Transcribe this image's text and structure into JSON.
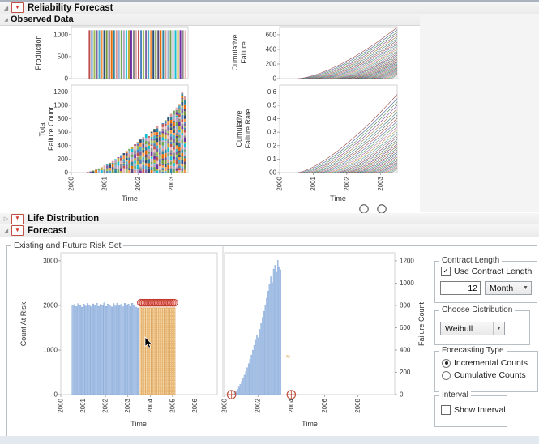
{
  "header": {
    "title": "Reliability Forecast"
  },
  "sections": {
    "observed_data": "Observed Data",
    "life_distribution": "Life Distribution",
    "forecast": "Forecast",
    "risk_set_title": "Existing and Future Risk Set"
  },
  "controls": {
    "contract_length": {
      "title": "Contract Length",
      "checkbox_label": "Use Contract Length",
      "checkbox_checked": true,
      "value": "12",
      "unit": "Month"
    },
    "choose_distribution": {
      "title": "Choose Distribution",
      "selected": "Weibull"
    },
    "forecasting_type": {
      "title": "Forecasting Type",
      "options": [
        "Incremental Counts",
        "Cumulative Counts"
      ],
      "selected": "Incremental Counts"
    },
    "interval": {
      "title": "Interval",
      "checkbox_label": "Show Interval",
      "checkbox_checked": false
    }
  },
  "chart_data": {
    "palettes": {
      "bars": [
        "#c0504d",
        "#4f81bd",
        "#9bbb59",
        "#8064a2",
        "#4bacc6",
        "#f79646",
        "#2c4d75",
        "#77933c",
        "#5f497a",
        "#e36c0a",
        "#31859c",
        "#d99694",
        "#95b3d7",
        "#71a659",
        "#b3a2c7",
        "#17becf",
        "#c3a932",
        "#7030a0",
        "#8c8c8c",
        "#e6b9b8"
      ],
      "lines": [
        "#8c3333",
        "#33518c",
        "#2f7a3d",
        "#7a3c8c",
        "#8c6a2f",
        "#2f7a7a",
        "#555555",
        "#a04545",
        "#45609f",
        "#4f8f4f",
        "#9f5fae",
        "#b08030",
        "#3f8f8f",
        "#777777",
        "#7a2e4d",
        "#2e5d7a",
        "#6b7a2e",
        "#5d2e7a",
        "#8a4a2e",
        "#2e7a5d"
      ],
      "observed_bar": "#a9c3e8",
      "observed_bar_edge": "#7aa0d2",
      "future_bar": "#f6d7a4",
      "future_bar_dot": "#dfa050",
      "risk_marker": "#c0392b",
      "anchor_marker": "#bf5240",
      "tilde_color": "#d69a3f"
    },
    "production": {
      "type": "bar",
      "ylabel": "Production",
      "yticks": [
        0,
        500,
        1000
      ],
      "ylim": [
        0,
        1180
      ],
      "x_range": [
        2000,
        2003.5
      ],
      "bar_count": 40,
      "bar_value": 1100,
      "x_start": 2000.52,
      "x_step": 0.0737
    },
    "cumulative_failure": {
      "type": "line",
      "ylabel": "Cumulative Failure",
      "ylabel_lines": [
        "Cumulative",
        "Failure"
      ],
      "yticks": [
        0,
        200,
        400,
        600
      ],
      "ylim": [
        0,
        710
      ],
      "x_range": [
        2000,
        2003.5
      ],
      "x_end": 2003.5,
      "curve_exponent": 1.5,
      "series_start_first": 2000.55,
      "series_start_step": 0.0833,
      "series_finals": [
        700,
        668,
        637,
        607,
        578,
        550,
        523,
        497,
        472,
        448,
        425,
        403,
        381,
        360,
        340,
        320,
        301,
        283,
        265,
        248,
        232,
        216,
        200,
        185,
        170,
        156,
        142,
        129,
        116,
        104,
        92,
        80,
        68,
        56
      ]
    },
    "total_failure_count": {
      "type": "stacked_bar",
      "ylabel_lines": [
        "Total",
        "Failure Count"
      ],
      "xlabel": "Time",
      "yticks": [
        0,
        200,
        400,
        600,
        800,
        1000,
        1200
      ],
      "ylim": [
        0,
        1300
      ],
      "xticks": [
        2000,
        2001,
        2002,
        2003
      ],
      "x_range": [
        2000,
        2003.5
      ],
      "x_start": 2000.46,
      "x_step": 0.0833,
      "values": [
        8,
        18,
        30,
        45,
        62,
        80,
        100,
        122,
        146,
        172,
        200,
        228,
        258,
        288,
        320,
        352,
        386,
        420,
        456,
        492,
        530,
        568,
        540,
        608,
        648,
        690,
        610,
        735,
        780,
        826,
        872,
        920,
        968,
        1018,
        1190,
        1130
      ]
    },
    "cumulative_failure_rate": {
      "type": "line",
      "ylabel_lines": [
        "Cumulative",
        "Failure Rate"
      ],
      "xlabel": "Time",
      "yticks": [
        0,
        0.1,
        0.2,
        0.3,
        0.4,
        0.5,
        0.6
      ],
      "ylim": [
        0,
        0.65
      ],
      "xticks": [
        2000,
        2001,
        2002,
        2003
      ],
      "x_range": [
        2000,
        2003.5
      ],
      "x_end": 2003.5,
      "curve_exponent": 1.4,
      "series_start_first": 2000.55,
      "series_start_step": 0.0833,
      "series_finals": [
        0.58,
        0.55,
        0.525,
        0.5,
        0.475,
        0.45,
        0.427,
        0.404,
        0.382,
        0.36,
        0.34,
        0.32,
        0.3,
        0.281,
        0.263,
        0.245,
        0.228,
        0.212,
        0.196,
        0.181,
        0.166,
        0.152,
        0.139,
        0.126,
        0.114,
        0.102,
        0.091,
        0.08,
        0.07,
        0.061,
        0.052,
        0.044,
        0.036,
        0.029
      ],
      "below_axis_markers": 2
    },
    "count_at_risk": {
      "type": "bar",
      "ylabel": "Count At Risk",
      "xlabel": "Time",
      "yticks": [
        0,
        1000,
        2000,
        3000
      ],
      "ylim": [
        0,
        3180
      ],
      "xticks": [
        2000,
        2001,
        2002,
        2003,
        2004,
        2005,
        2006
      ],
      "x_range": [
        2000,
        2007
      ],
      "observed": {
        "x_start": 2000.5,
        "x_step": 0.0833,
        "values": [
          1990,
          2020,
          1975,
          2040,
          1995,
          1962,
          2030,
          1985,
          2045,
          2002,
          1970,
          2035,
          1992,
          2050,
          1980,
          2025,
          1996,
          2058,
          1976,
          2032,
          2004,
          1966,
          2042,
          1988,
          2052,
          1991,
          2022,
          1972,
          2046,
          2001,
          2031,
          1977,
          2049,
          1994,
          1963,
          1945
        ]
      },
      "future": {
        "x_start": 2003.55,
        "x_step": 0.0833,
        "values": [
          1952,
          1948,
          1950,
          1946,
          1951,
          1949,
          1947,
          1952,
          1950,
          1948,
          1951,
          1946,
          1950,
          1949,
          1952,
          1947,
          1950,
          1948,
          1951
        ],
        "marker_value": 2060
      }
    },
    "failure_count_forecast": {
      "type": "bar",
      "ylabel": "Failure Count",
      "ylabel_side": "right",
      "xlabel": "Time",
      "yticks": [
        0,
        200,
        400,
        600,
        800,
        1000,
        1200
      ],
      "ylim": [
        0,
        1272
      ],
      "xticks": [
        2000,
        2002,
        2004,
        2006,
        2008
      ],
      "x_range": [
        2000,
        2010.2
      ],
      "x_start": 2000.58,
      "x_step": 0.0833,
      "values": [
        15,
        30,
        48,
        68,
        92,
        118,
        146,
        176,
        208,
        242,
        278,
        316,
        356,
        398,
        442,
        488,
        536,
        510,
        586,
        638,
        692,
        748,
        806,
        866,
        928,
        992,
        1058,
        1005,
        1126,
        1160,
        1098,
        1205,
        1148,
        1120
      ],
      "anchor_markers": [
        {
          "x": 2000.42,
          "y": 0
        },
        {
          "x": 2004.0,
          "y": 0
        }
      ],
      "annotation": {
        "x": 2003.7,
        "y": 320,
        "text": "≈"
      }
    }
  }
}
